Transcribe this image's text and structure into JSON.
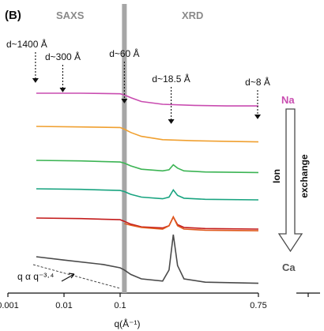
{
  "chart_data": {
    "type": "line",
    "panel_label": "(B)",
    "xscale": "log-then-linear",
    "xlim": [
      0.001,
      0.75
    ],
    "x_break": 0.1,
    "xlabel": "q(Å⁻¹)",
    "xticks": [
      "0.001",
      "0.01",
      "0.1",
      "0.75"
    ],
    "regions": [
      "SAXS",
      "XRD"
    ],
    "grid": false,
    "offset_curves": true,
    "annotations": [
      {
        "text": "d~1400 Å",
        "q": 0.0031
      },
      {
        "text": "d~300 Å",
        "q": 0.0095
      },
      {
        "text": "d~60 Å",
        "q": 0.12
      },
      {
        "text": "d~18.5 Å",
        "q": 0.34
      },
      {
        "text": "d~8 Å",
        "q": 0.74
      }
    ],
    "power_law_label": "q α q⁻³·⁴",
    "exchange_label": {
      "top": "Na",
      "bottom": "Ca",
      "left": "Ion",
      "right": "exchange"
    },
    "series": [
      {
        "color": "#c94cb0",
        "points": [
          [
            0.0032,
            1.0
          ],
          [
            0.02,
            1.0
          ],
          [
            0.1,
            0.99
          ],
          [
            0.12,
            0.97
          ],
          [
            0.15,
            0.92
          ],
          [
            0.2,
            0.85
          ],
          [
            0.3,
            0.8
          ],
          [
            0.45,
            0.78
          ],
          [
            0.6,
            0.77
          ],
          [
            0.75,
            0.77
          ]
        ]
      },
      {
        "color": "#f0a030",
        "points": [
          [
            0.0032,
            1.0
          ],
          [
            0.02,
            0.99
          ],
          [
            0.1,
            0.98
          ],
          [
            0.12,
            0.95
          ],
          [
            0.15,
            0.89
          ],
          [
            0.2,
            0.82
          ],
          [
            0.3,
            0.76
          ],
          [
            0.45,
            0.74
          ],
          [
            0.6,
            0.73
          ],
          [
            0.75,
            0.72
          ]
        ]
      },
      {
        "color": "#3cb454",
        "points": [
          [
            0.0032,
            1.0
          ],
          [
            0.02,
            0.99
          ],
          [
            0.1,
            0.97
          ],
          [
            0.12,
            0.95
          ],
          [
            0.15,
            0.9
          ],
          [
            0.2,
            0.84
          ],
          [
            0.3,
            0.81
          ],
          [
            0.33,
            0.83
          ],
          [
            0.35,
            0.92
          ],
          [
            0.37,
            0.86
          ],
          [
            0.4,
            0.81
          ],
          [
            0.5,
            0.79
          ],
          [
            0.75,
            0.78
          ]
        ]
      },
      {
        "color": "#19a480",
        "points": [
          [
            0.0032,
            1.0
          ],
          [
            0.02,
            0.99
          ],
          [
            0.1,
            0.97
          ],
          [
            0.12,
            0.95
          ],
          [
            0.15,
            0.9
          ],
          [
            0.2,
            0.85
          ],
          [
            0.3,
            0.82
          ],
          [
            0.33,
            0.85
          ],
          [
            0.35,
            0.98
          ],
          [
            0.37,
            0.88
          ],
          [
            0.4,
            0.83
          ],
          [
            0.5,
            0.81
          ],
          [
            0.75,
            0.8
          ]
        ]
      },
      {
        "color": "#c41c1c",
        "points": [
          [
            0.0032,
            1.0
          ],
          [
            0.02,
            0.99
          ],
          [
            0.1,
            0.97
          ],
          [
            0.12,
            0.94
          ],
          [
            0.15,
            0.89
          ],
          [
            0.2,
            0.84
          ],
          [
            0.3,
            0.82
          ],
          [
            0.33,
            0.86
          ],
          [
            0.35,
            1.02
          ],
          [
            0.37,
            0.88
          ],
          [
            0.4,
            0.83
          ],
          [
            0.5,
            0.81
          ],
          [
            0.75,
            0.8
          ]
        ]
      },
      {
        "color": "#e05a1e",
        "points": [
          [
            0.12,
            1.0
          ],
          [
            0.15,
            0.97
          ],
          [
            0.2,
            0.93
          ],
          [
            0.3,
            0.9
          ],
          [
            0.33,
            0.96
          ],
          [
            0.35,
            1.12
          ],
          [
            0.37,
            0.96
          ],
          [
            0.4,
            0.9
          ],
          [
            0.5,
            0.88
          ],
          [
            0.75,
            0.87
          ]
        ]
      },
      {
        "color": "#4a4a4a",
        "points": [
          [
            0.0032,
            1.0
          ],
          [
            0.01,
            0.97
          ],
          [
            0.05,
            0.93
          ],
          [
            0.1,
            0.9
          ],
          [
            0.12,
            0.88
          ],
          [
            0.15,
            0.84
          ],
          [
            0.2,
            0.8
          ],
          [
            0.3,
            0.78
          ],
          [
            0.33,
            0.88
          ],
          [
            0.35,
            1.2
          ],
          [
            0.37,
            0.92
          ],
          [
            0.4,
            0.8
          ],
          [
            0.5,
            0.77
          ],
          [
            0.75,
            0.76
          ]
        ]
      }
    ]
  }
}
